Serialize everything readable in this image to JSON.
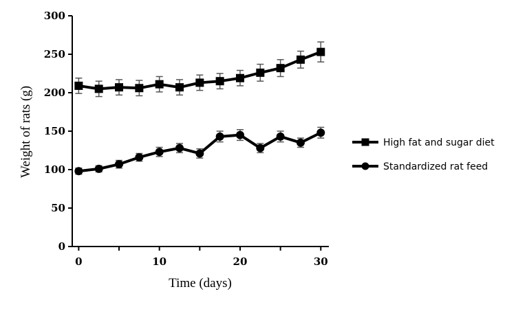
{
  "chart_data": {
    "type": "line",
    "xlabel": "Time (days)",
    "ylabel": "Weight of rats (g)",
    "xlim": [
      -0.8,
      31
    ],
    "ylim": [
      0,
      300
    ],
    "xticks": [
      0,
      10,
      20,
      30
    ],
    "yticks": [
      0,
      50,
      100,
      150,
      200,
      250,
      300
    ],
    "legend_position": "right",
    "grid": false,
    "series": [
      {
        "name": "High fat and sugar diet",
        "marker": "square",
        "color": "#000000",
        "x": [
          0,
          2.5,
          5,
          7.5,
          10,
          12.5,
          15,
          17.5,
          20,
          22.5,
          25,
          27.5,
          30
        ],
        "y": [
          209,
          205,
          207,
          206,
          211,
          207,
          213,
          215,
          219,
          226,
          232,
          243,
          253
        ],
        "error": [
          10,
          10,
          10,
          10,
          10,
          10,
          10,
          10,
          10,
          11,
          11,
          11,
          13
        ]
      },
      {
        "name": "Standardized rat feed",
        "marker": "circle",
        "color": "#000000",
        "x": [
          0,
          2.5,
          5,
          7.5,
          10,
          12.5,
          15,
          17.5,
          20,
          22.5,
          25,
          27.5,
          30
        ],
        "y": [
          98,
          101,
          107,
          116,
          123,
          128,
          121,
          143,
          145,
          128,
          143,
          135,
          148
        ],
        "error": [
          4,
          4,
          5,
          5,
          6,
          6,
          6,
          7,
          7,
          6,
          7,
          6,
          7
        ]
      }
    ]
  }
}
